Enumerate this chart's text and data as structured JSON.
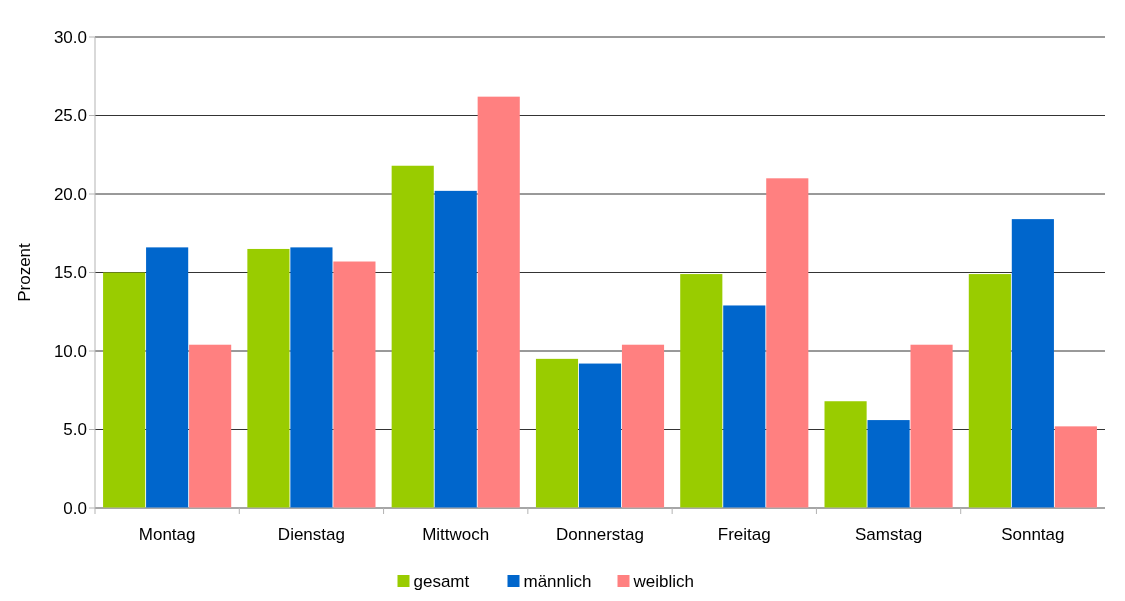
{
  "chart_data": {
    "type": "bar",
    "ylabel": "Prozent",
    "categories": [
      "Montag",
      "Dienstag",
      "Mittwoch",
      "Donnerstag",
      "Freitag",
      "Samstag",
      "Sonntag"
    ],
    "series": [
      {
        "name": "gesamt",
        "color": "#99cc00",
        "values": [
          15.0,
          16.5,
          21.8,
          9.5,
          14.9,
          6.8,
          14.9
        ]
      },
      {
        "name": "männlich",
        "color": "#0066cc",
        "values": [
          16.6,
          16.6,
          20.2,
          9.2,
          12.9,
          5.6,
          18.4
        ]
      },
      {
        "name": "weiblich",
        "color": "#ff8080",
        "values": [
          10.4,
          15.7,
          26.2,
          10.4,
          21.0,
          10.4,
          5.2
        ]
      }
    ],
    "ylim": [
      0,
      30
    ],
    "yticks": [
      {
        "value": 0,
        "label": "0.0"
      },
      {
        "value": 5,
        "label": "5.0"
      },
      {
        "value": 10,
        "label": "10.0"
      },
      {
        "value": 15,
        "label": "15.0"
      },
      {
        "value": 20,
        "label": "20.0"
      },
      {
        "value": 25,
        "label": "25.0"
      },
      {
        "value": 30,
        "label": "30.0"
      }
    ],
    "grid": "y",
    "legend": "bottom"
  }
}
